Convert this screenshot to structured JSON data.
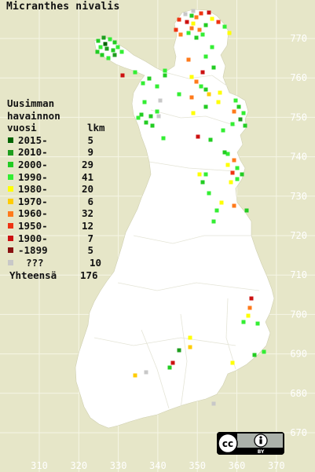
{
  "title": "Micranthes nivalis",
  "legend": {
    "heading": [
      "Uusimman",
      "havainnon",
      "vuosi"
    ],
    "count_heading": "lkm",
    "items": [
      {
        "label": "2015-",
        "count": "5",
        "color": "#006400"
      },
      {
        "label": "2010-",
        "count": "9",
        "color": "#1e9e1e"
      },
      {
        "label": "2000-",
        "count": "29",
        "color": "#22cc22"
      },
      {
        "label": "1990-",
        "count": "41",
        "color": "#33ee33"
      },
      {
        "label": "1980-",
        "count": "20",
        "color": "#ffff00"
      },
      {
        "label": "1970-",
        "count": "6",
        "color": "#ffcc00"
      },
      {
        "label": "1960-",
        "count": "32",
        "color": "#ff7a1a"
      },
      {
        "label": "1950-",
        "count": "12",
        "color": "#ee3311"
      },
      {
        "label": "1900-",
        "count": "7",
        "color": "#cc1111"
      },
      {
        "label": "-1899",
        "count": "5",
        "color": "#881111"
      },
      {
        "label": "???",
        "count": "10",
        "color": "#c8c8c8"
      }
    ],
    "total_label": "Yhteensä",
    "total_count": "176"
  },
  "axes": {
    "y_ticks": [
      "770",
      "760",
      "750",
      "740",
      "730",
      "720",
      "710",
      "700",
      "690",
      "680",
      "670"
    ],
    "x_ticks": [
      "310",
      "320",
      "330",
      "340",
      "350",
      "360",
      "370"
    ]
  },
  "license": {
    "badge": "cc",
    "by": "BY",
    "icon": "creative-commons-by-icon"
  }
}
